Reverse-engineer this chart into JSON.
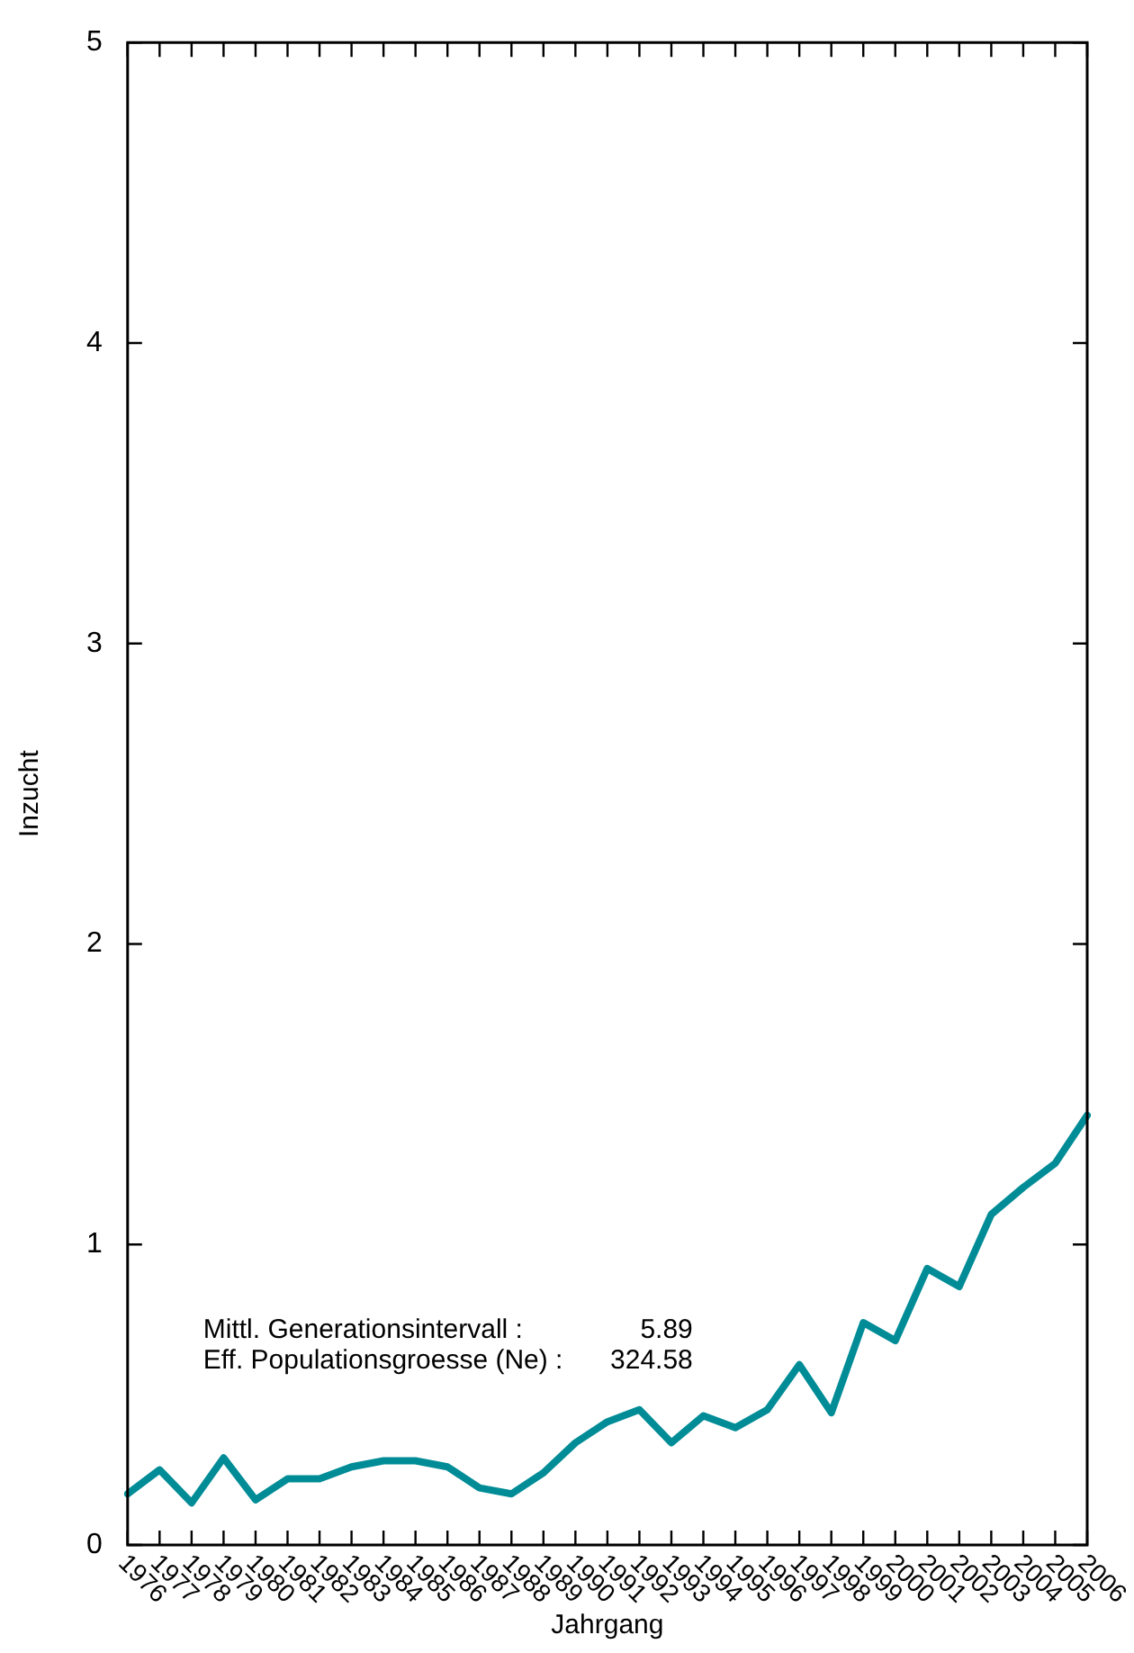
{
  "chart_data": {
    "type": "line",
    "xlabel": "Jahrgang",
    "ylabel": "Inzucht",
    "categories": [
      "1976",
      "1977",
      "1978",
      "1979",
      "1980",
      "1981",
      "1982",
      "1983",
      "1984",
      "1985",
      "1986",
      "1987",
      "1988",
      "1989",
      "1990",
      "1991",
      "1992",
      "1993",
      "1994",
      "1995",
      "1996",
      "1997",
      "1998",
      "1999",
      "2000",
      "2001",
      "2002",
      "2003",
      "2004",
      "2005",
      "2006"
    ],
    "values": [
      0.17,
      0.25,
      0.14,
      0.29,
      0.15,
      0.22,
      0.22,
      0.26,
      0.28,
      0.28,
      0.26,
      0.19,
      0.17,
      0.24,
      0.34,
      0.41,
      0.45,
      0.34,
      0.43,
      0.39,
      0.45,
      0.6,
      0.44,
      0.74,
      0.68,
      0.92,
      0.86,
      1.1,
      1.19,
      1.27,
      1.43
    ],
    "color": "#008c96",
    "ylim": [
      0,
      5
    ],
    "yticks": [
      0,
      1,
      2,
      3,
      4,
      5
    ],
    "grid": false,
    "legend": false,
    "marker": "none",
    "line_style": "solid",
    "annotations": [
      "Mittl. Generationsintervall : 5.89",
      "Eff. Populationsgroesse (Ne) : 324.58"
    ]
  }
}
